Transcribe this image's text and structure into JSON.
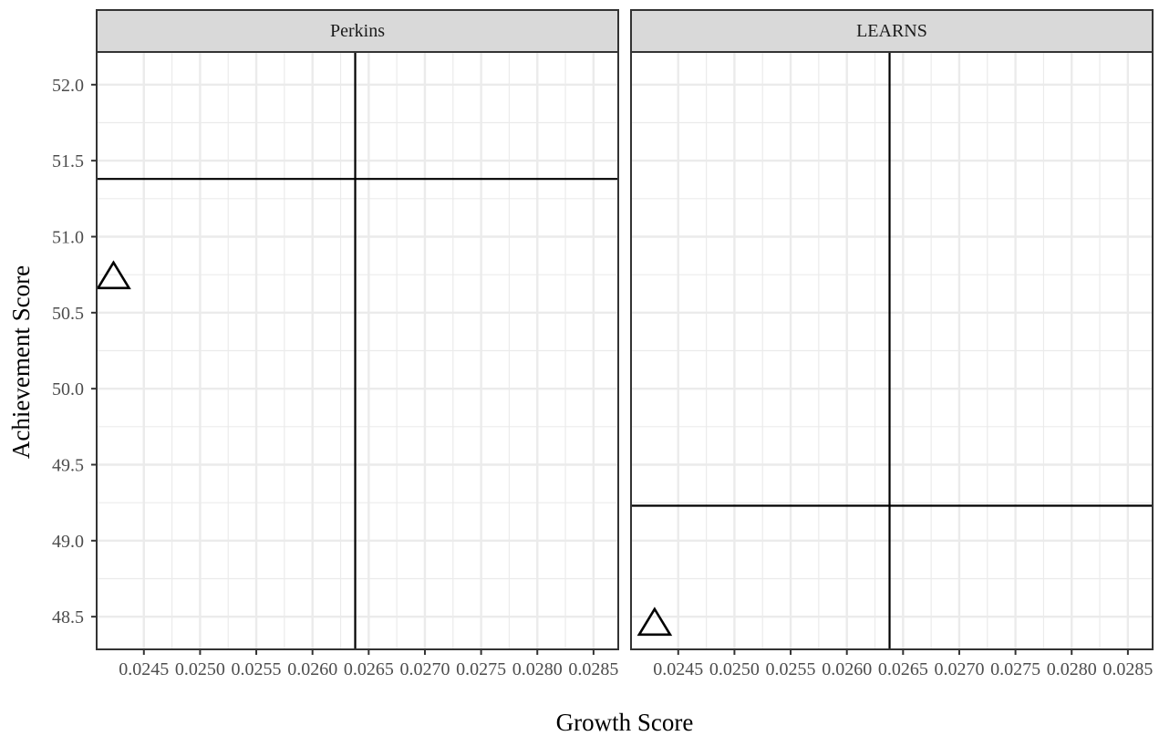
{
  "chart_data": {
    "type": "scatter",
    "xlabel": "Growth Score",
    "ylabel": "Achievement Score",
    "xlim": [
      0.02408,
      0.02872
    ],
    "ylim": [
      48.285,
      52.215
    ],
    "x_ticks": [
      0.0245,
      0.025,
      0.0255,
      0.026,
      0.0265,
      0.027,
      0.0275,
      0.028,
      0.0285
    ],
    "x_tick_labels": [
      "0.0245",
      "0.0250",
      "0.0255",
      "0.0260",
      "0.0265",
      "0.0270",
      "0.0275",
      "0.0280",
      "0.0285"
    ],
    "y_ticks": [
      48.5,
      49.0,
      49.5,
      50.0,
      50.5,
      51.0,
      51.5,
      52.0
    ],
    "y_tick_labels": [
      "48.5",
      "49.0",
      "49.5",
      "50.0",
      "50.5",
      "51.0",
      "51.5",
      "52.0"
    ],
    "grid": true,
    "marker": "open-triangle",
    "colors": {
      "strip": "#d9d9d9",
      "grid": "#ebebeb",
      "axis": "#333333",
      "line": "#000000"
    },
    "panels": [
      {
        "title": "Perkins",
        "points": [
          {
            "x": 0.02423,
            "y": 50.74
          }
        ],
        "vline_x": 0.02638,
        "hline_y": 51.38
      },
      {
        "title": "LEARNS",
        "points": [
          {
            "x": 0.02429,
            "y": 48.46
          }
        ],
        "vline_x": 0.02638,
        "hline_y": 49.23
      }
    ]
  }
}
